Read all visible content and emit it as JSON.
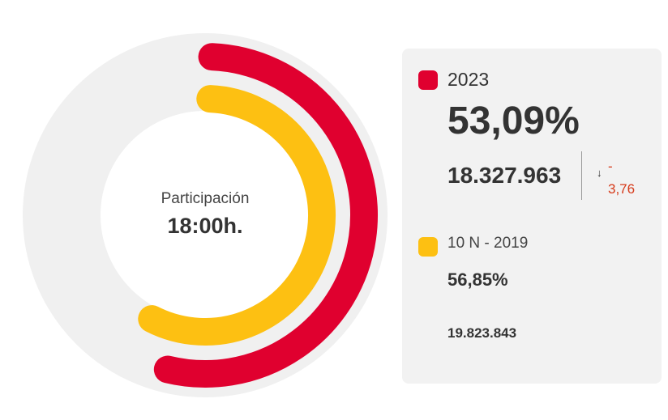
{
  "center": {
    "title": "Participación",
    "time": "18:00h."
  },
  "colors": {
    "current": "#e0002f",
    "previous": "#fdc012",
    "track": "#f0f0f0",
    "panel": "#f2f2f2",
    "negative": "#d63a1a"
  },
  "chart_data": {
    "type": "pie",
    "title": "Participación 18:00h.",
    "max": 100,
    "series": [
      {
        "name": "2023",
        "value": 53.09,
        "value_label": "53,09%",
        "votes": "18.327.963",
        "change_sign": "-",
        "change": "3,76"
      },
      {
        "name": "10 N - 2019",
        "value": 56.85,
        "value_label": "56,85%",
        "votes": "19.823.843"
      }
    ]
  }
}
